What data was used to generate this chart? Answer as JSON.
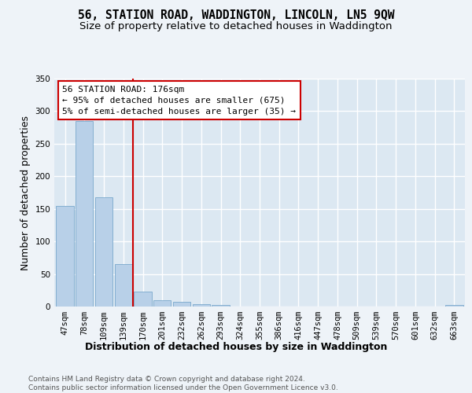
{
  "title": "56, STATION ROAD, WADDINGTON, LINCOLN, LN5 9QW",
  "subtitle": "Size of property relative to detached houses in Waddington",
  "xlabel": "Distribution of detached houses by size in Waddington",
  "ylabel": "Number of detached properties",
  "bar_color": "#b8d0e8",
  "bar_edge_color": "#7aa8cc",
  "categories": [
    "47sqm",
    "78sqm",
    "109sqm",
    "139sqm",
    "170sqm",
    "201sqm",
    "232sqm",
    "262sqm",
    "293sqm",
    "324sqm",
    "355sqm",
    "386sqm",
    "416sqm",
    "447sqm",
    "478sqm",
    "509sqm",
    "539sqm",
    "570sqm",
    "601sqm",
    "632sqm",
    "663sqm"
  ],
  "values": [
    155,
    285,
    168,
    65,
    23,
    10,
    7,
    4,
    2,
    0,
    0,
    0,
    0,
    0,
    0,
    0,
    0,
    0,
    0,
    0,
    2
  ],
  "ylim": [
    0,
    350
  ],
  "yticks": [
    0,
    50,
    100,
    150,
    200,
    250,
    300,
    350
  ],
  "annotation_text": "56 STATION ROAD: 176sqm\n← 95% of detached houses are smaller (675)\n5% of semi-detached houses are larger (35) →",
  "vline_index": 3.5,
  "footer_line1": "Contains HM Land Registry data © Crown copyright and database right 2024.",
  "footer_line2": "Contains public sector information licensed under the Open Government Licence v3.0.",
  "background_color": "#eef3f8",
  "plot_bg_color": "#dce8f2",
  "grid_color": "#c8d8e8",
  "title_fontsize": 10.5,
  "subtitle_fontsize": 9.5,
  "axis_label_fontsize": 9,
  "tick_fontsize": 7.5,
  "annotation_fontsize": 8,
  "footer_fontsize": 6.5
}
